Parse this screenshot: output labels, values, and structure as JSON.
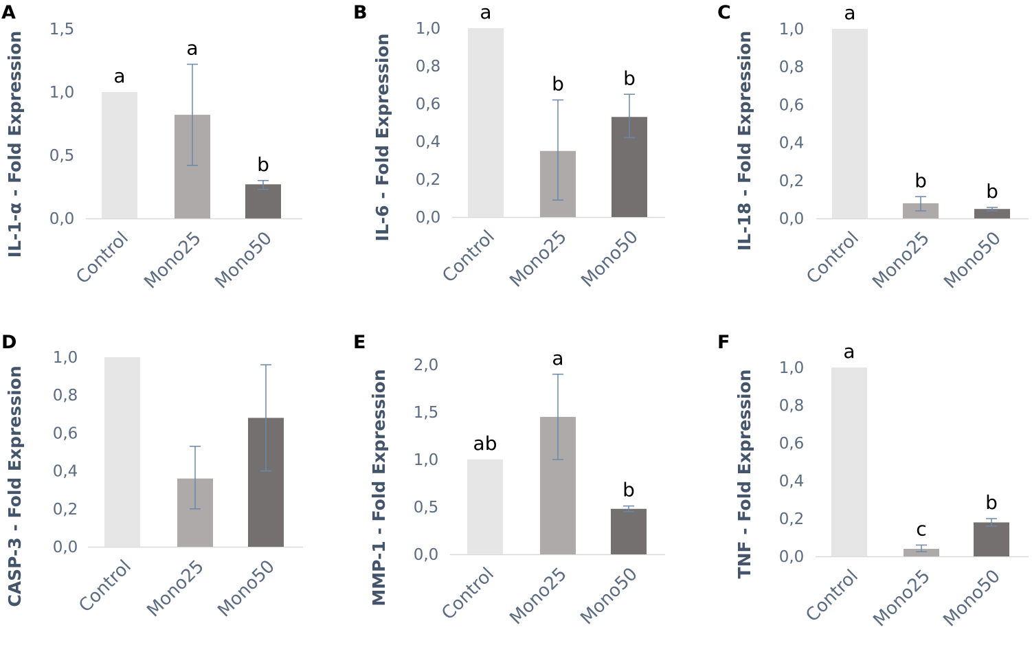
{
  "colors": {
    "control": "#e6e6e6",
    "mono25": "#aeaaaa",
    "mono50": "#747070",
    "errorbar": "#6b87a8",
    "axis": "#d9d9d9"
  },
  "chart_data": [
    {
      "panel": "A",
      "type": "bar",
      "ylabel": "IL-1-α - Fold Expression",
      "categories": [
        "Control",
        "Mono25",
        "Mono50"
      ],
      "values": [
        1.0,
        0.82,
        0.27
      ],
      "errors": [
        null,
        [
          0.42,
          1.22
        ],
        [
          0.23,
          0.3
        ]
      ],
      "letters": [
        "a",
        "a",
        "b"
      ],
      "ylim": [
        0,
        1.5
      ],
      "ticks": [
        "0,0",
        "0,5",
        "1,0",
        "1,5"
      ]
    },
    {
      "panel": "B",
      "type": "bar",
      "ylabel": "IL-6 - Fold Expression",
      "categories": [
        "Control",
        "Mono25",
        "Mono50"
      ],
      "values": [
        1.0,
        0.35,
        0.53
      ],
      "errors": [
        null,
        [
          0.09,
          0.62
        ],
        [
          0.42,
          0.65
        ]
      ],
      "letters": [
        "a",
        "b",
        "b"
      ],
      "ylim": [
        0,
        1.0
      ],
      "ticks": [
        "0,0",
        "0,2",
        "0,4",
        "0,6",
        "0,8",
        "1,0"
      ]
    },
    {
      "panel": "C",
      "type": "bar",
      "ylabel": "IL-18 - Fold Expression",
      "categories": [
        "Control",
        "Mono25",
        "Mono50"
      ],
      "values": [
        1.0,
        0.08,
        0.05
      ],
      "errors": [
        null,
        [
          0.04,
          0.115
        ],
        [
          0.04,
          0.058
        ]
      ],
      "letters": [
        "a",
        "b",
        "b"
      ],
      "ylim": [
        0,
        1.0
      ],
      "ticks": [
        "0,0",
        "0,2",
        "0,4",
        "0,6",
        "0,8",
        "1,0"
      ]
    },
    {
      "panel": "D",
      "type": "bar",
      "ylabel": "CASP-3 - Fold Expression",
      "categories": [
        "Control",
        "Mono25",
        "Mono50"
      ],
      "values": [
        1.0,
        0.36,
        0.68
      ],
      "errors": [
        null,
        [
          0.2,
          0.53
        ],
        [
          0.4,
          0.96
        ]
      ],
      "letters": [
        "",
        "",
        ""
      ],
      "ylim": [
        0,
        1.0
      ],
      "ticks": [
        "0,0",
        "0,2",
        "0,4",
        "0,6",
        "0,8",
        "1,0"
      ]
    },
    {
      "panel": "E",
      "type": "bar",
      "ylabel": "MMP-1 - Fold Expression",
      "categories": [
        "Control",
        "Mono25",
        "Mono50"
      ],
      "values": [
        1.0,
        1.45,
        0.48
      ],
      "errors": [
        null,
        [
          1.0,
          1.9
        ],
        [
          0.45,
          0.51
        ]
      ],
      "letters": [
        "ab",
        "a",
        "b"
      ],
      "ylim": [
        0,
        2.0
      ],
      "ticks": [
        "0,0",
        "0,5",
        "1,0",
        "1,5",
        "2,0"
      ]
    },
    {
      "panel": "F",
      "type": "bar",
      "ylabel": "TNF - Fold Expression",
      "categories": [
        "Control",
        "Mono25",
        "Mono50"
      ],
      "values": [
        1.0,
        0.04,
        0.18
      ],
      "errors": [
        null,
        [
          0.025,
          0.06
        ],
        [
          0.16,
          0.2
        ]
      ],
      "letters": [
        "a",
        "c",
        "b"
      ],
      "ylim": [
        0,
        1.0
      ],
      "ticks": [
        "0,0",
        "0,2",
        "0,4",
        "0,6",
        "0,8",
        "1,0"
      ]
    }
  ]
}
